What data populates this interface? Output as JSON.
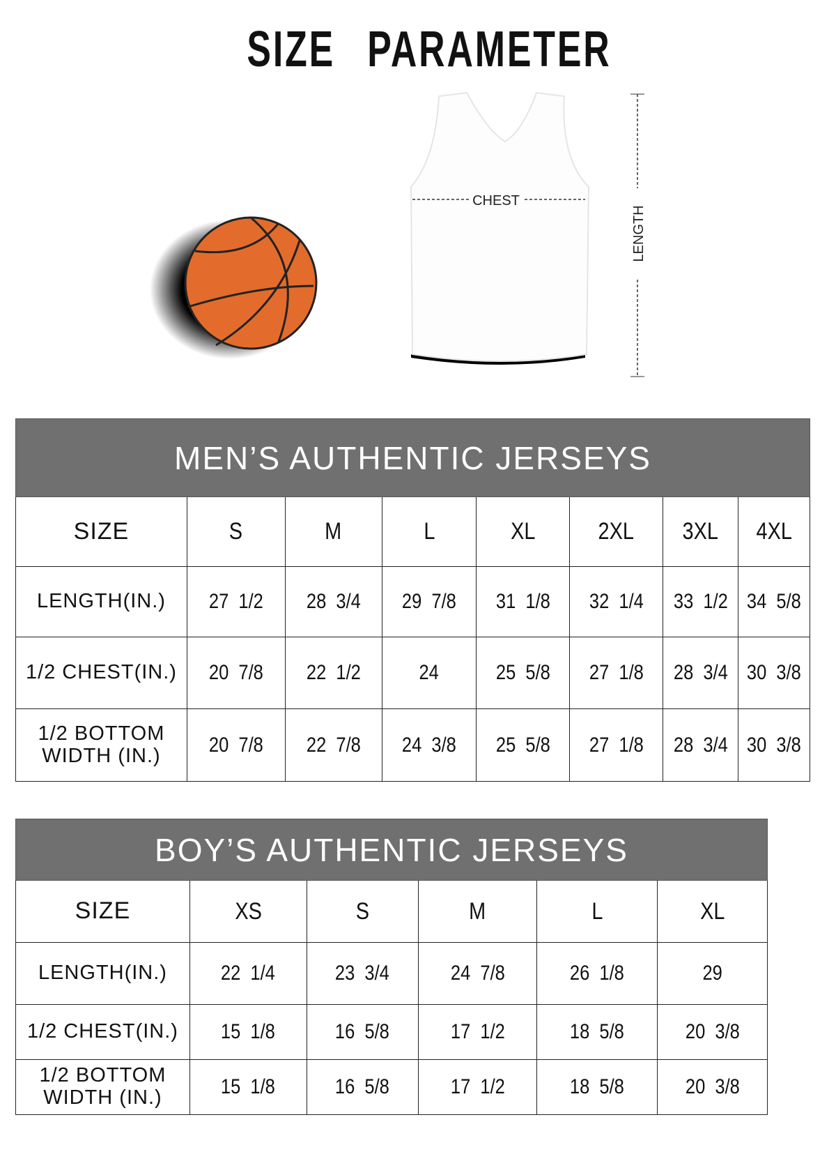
{
  "title": "SIZE PARAMETER",
  "diagram": {
    "chest_label": "CHEST",
    "length_label": "LENGTH",
    "ball_color": "#e36c2c"
  },
  "men": {
    "heading": "MEN’S AUTHENTIC JERSEYS",
    "size_label": "SIZE",
    "sizes": [
      "S",
      "M",
      "L",
      "XL",
      "2XL",
      "3XL",
      "4XL"
    ],
    "rows": [
      {
        "label": "LENGTH(IN.)",
        "values": [
          "27  1/2",
          "28  3/4",
          "29  7/8",
          "31  1/8",
          "32  1/4",
          "33  1/2",
          "34  5/8"
        ]
      },
      {
        "label": "1/2 CHEST(IN.)",
        "values": [
          "20  7/8",
          "22  1/2",
          "24",
          "25  5/8",
          "27  1/8",
          "28  3/4",
          "30  3/8"
        ]
      },
      {
        "label": "1/2 BOTTOM WIDTH  (IN.)",
        "values": [
          "20  7/8",
          "22  7/8",
          "24  3/8",
          "25  5/8",
          "27  1/8",
          "28  3/4",
          "30  3/8"
        ]
      }
    ]
  },
  "boy": {
    "heading": "BOY’S AUTHENTIC JERSEYS",
    "size_label": "SIZE",
    "sizes": [
      "XS",
      "S",
      "M",
      "L",
      "XL"
    ],
    "rows": [
      {
        "label": "LENGTH(IN.)",
        "values": [
          "22  1/4",
          "23  3/4",
          "24  7/8",
          "26  1/8",
          "29"
        ]
      },
      {
        "label": "1/2 CHEST(IN.)",
        "values": [
          "15  1/8",
          "16  5/8",
          "17  1/2",
          "18  5/8",
          "20  3/8"
        ]
      },
      {
        "label": "1/2 BOTTOM WIDTH  (IN.)",
        "values": [
          "15  1/8",
          "16  5/8",
          "17  1/2",
          "18  5/8",
          "20  3/8"
        ]
      }
    ]
  }
}
